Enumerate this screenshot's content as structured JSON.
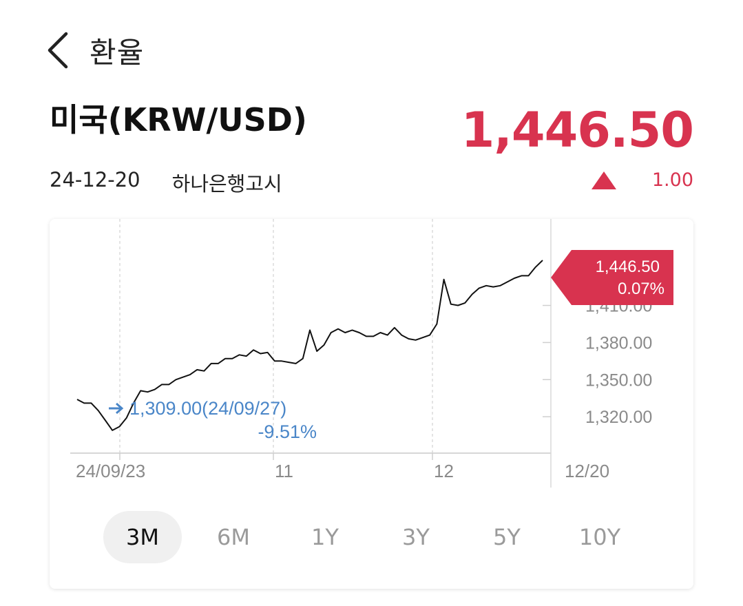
{
  "header": {
    "title": "환율",
    "back_icon": "chevron-left-icon"
  },
  "pair": {
    "name": "미국(KRW/USD)"
  },
  "rate": {
    "value": "1,446.50",
    "change": "1.00",
    "direction": "up",
    "color": "#d8334f"
  },
  "meta": {
    "date": "24-12-20",
    "source": "하나은행고시"
  },
  "chart_data": {
    "type": "line",
    "y_tick_labels": [
      "1,410.00",
      "1,380.00",
      "1,350.00",
      "1,320.00"
    ],
    "y_ticks": [
      1410,
      1380,
      1350,
      1320
    ],
    "ylim": [
      1290,
      1476
    ],
    "x_tick_labels": [
      "24/09/23",
      "11",
      "12",
      "12/20"
    ],
    "current": {
      "value": "1,446.50",
      "pct": "0.07%"
    },
    "low": {
      "label": "1,309.00(24/09/27)",
      "pct": "-9.51%",
      "value": 1309
    },
    "series": [
      {
        "values": [
          1334,
          1331,
          1331,
          1325,
          1317,
          1309,
          1312,
          1319,
          1331,
          1341,
          1340,
          1342,
          1346,
          1346,
          1350,
          1352,
          1354,
          1358,
          1357,
          1363,
          1363,
          1367,
          1367,
          1370,
          1369,
          1374,
          1371,
          1372,
          1365,
          1365,
          1364,
          1363,
          1367,
          1390,
          1373,
          1378,
          1388,
          1391,
          1388,
          1390,
          1388,
          1385,
          1385,
          1388,
          1386,
          1392,
          1386,
          1383,
          1382,
          1384,
          1386,
          1395,
          1431,
          1411,
          1410,
          1412,
          1419,
          1424,
          1426,
          1425,
          1426,
          1429,
          1432,
          1434,
          1434,
          1441,
          1446.5
        ]
      }
    ]
  },
  "periods": [
    "3M",
    "6M",
    "1Y",
    "3Y",
    "5Y",
    "10Y"
  ],
  "active_period": "3M"
}
